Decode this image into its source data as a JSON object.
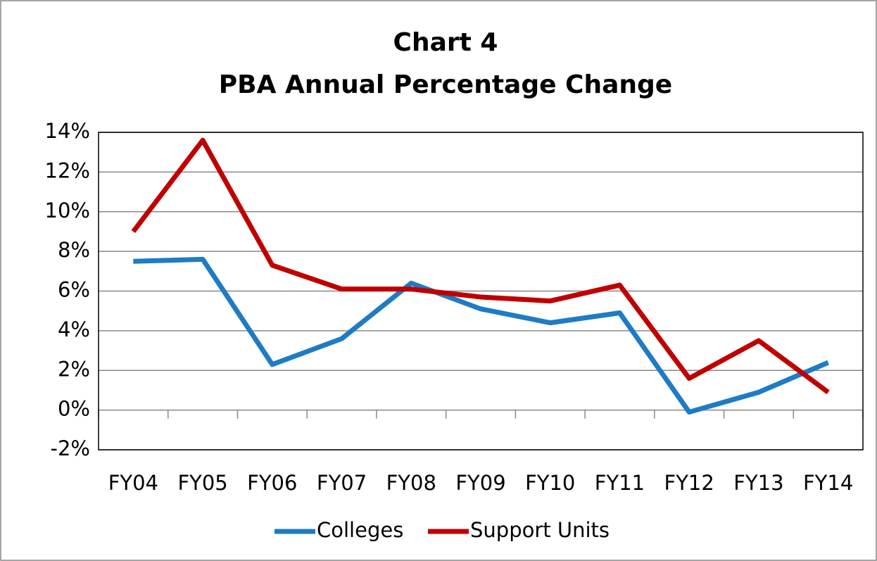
{
  "chart_data": {
    "type": "line",
    "title": "Chart 4",
    "subtitle": "PBA Annual Percentage Change",
    "categories": [
      "FY04",
      "FY05",
      "FY06",
      "FY07",
      "FY08",
      "FY09",
      "FY10",
      "FY11",
      "FY12",
      "FY13",
      "FY14"
    ],
    "series": [
      {
        "name": "Colleges",
        "color": "#1f7bc4",
        "values": [
          7.5,
          7.6,
          2.3,
          3.6,
          6.4,
          5.1,
          4.4,
          4.9,
          -0.1,
          0.9,
          2.4
        ]
      },
      {
        "name": "Support Units",
        "color": "#c00000",
        "values": [
          9.0,
          13.6,
          7.3,
          6.1,
          6.1,
          5.7,
          5.5,
          6.3,
          1.6,
          3.5,
          0.9
        ]
      }
    ],
    "ylim": [
      -2,
      14
    ],
    "yticks": [
      {
        "value": -2,
        "label": "-2%"
      },
      {
        "value": 0,
        "label": "0%"
      },
      {
        "value": 2,
        "label": "2%"
      },
      {
        "value": 4,
        "label": "4%"
      },
      {
        "value": 6,
        "label": "6%"
      },
      {
        "value": 8,
        "label": "8%"
      },
      {
        "value": 10,
        "label": "10%"
      },
      {
        "value": 12,
        "label": "12%"
      },
      {
        "value": 14,
        "label": "14%"
      }
    ],
    "grid": true,
    "legend": "bottom"
  }
}
